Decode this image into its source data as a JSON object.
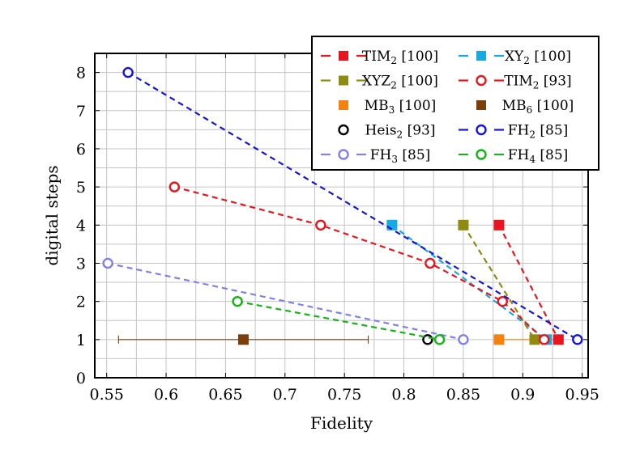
{
  "chart_data": {
    "type": "scatter",
    "xlabel": "Fidelity",
    "ylabel": "digital steps",
    "xlim": [
      0.54,
      0.955
    ],
    "ylim": [
      0,
      8.5
    ],
    "grid": true,
    "legend_position": "top-right",
    "xticks": [
      {
        "v": 0.55,
        "label": "0.55"
      },
      {
        "v": 0.6,
        "label": "0.6"
      },
      {
        "v": 0.65,
        "label": "0.65"
      },
      {
        "v": 0.7,
        "label": "0.7"
      },
      {
        "v": 0.75,
        "label": "0.75"
      },
      {
        "v": 0.8,
        "label": "0.8"
      },
      {
        "v": 0.85,
        "label": "0.85"
      },
      {
        "v": 0.9,
        "label": "0.9"
      },
      {
        "v": 0.95,
        "label": "0.95"
      }
    ],
    "yticks": [
      {
        "v": 0,
        "label": "0"
      },
      {
        "v": 1,
        "label": "1"
      },
      {
        "v": 2,
        "label": "2"
      },
      {
        "v": 3,
        "label": "3"
      },
      {
        "v": 4,
        "label": "4"
      },
      {
        "v": 5,
        "label": "5"
      },
      {
        "v": 6,
        "label": "6"
      },
      {
        "v": 7,
        "label": "7"
      },
      {
        "v": 8,
        "label": "8"
      }
    ],
    "series": [
      {
        "name": "TIM",
        "sub": "2",
        "ref": " [100]",
        "marker": "square",
        "color": "#e8141e",
        "dashed": true,
        "points": [
          {
            "x": 0.88,
            "y": 4
          },
          {
            "x": 0.93,
            "y": 1
          }
        ]
      },
      {
        "name": "XY",
        "sub": "2",
        "ref": " [100]",
        "marker": "square",
        "color": "#17a9e1",
        "dashed": true,
        "points": [
          {
            "x": 0.79,
            "y": 4
          },
          {
            "x": 0.92,
            "y": 1
          }
        ]
      },
      {
        "name": "XYZ",
        "sub": "2",
        "ref": " [100]",
        "marker": "square",
        "color": "#8f8b10",
        "dashed": true,
        "points": [
          {
            "x": 0.85,
            "y": 4
          },
          {
            "x": 0.91,
            "y": 1
          }
        ]
      },
      {
        "name": "TIM",
        "sub": "2",
        "ref": " [93]",
        "marker": "circle",
        "color": "#e8141e",
        "dashed": true,
        "points": [
          {
            "x": 0.607,
            "y": 5
          },
          {
            "x": 0.73,
            "y": 4
          },
          {
            "x": 0.822,
            "y": 3
          },
          {
            "x": 0.883,
            "y": 2
          },
          {
            "x": 0.918,
            "y": 1
          }
        ]
      },
      {
        "name": "MB",
        "sub": "3",
        "ref": " [100]",
        "marker": "square",
        "color": "#f5820f",
        "dashed": false,
        "points": [
          {
            "x": 0.88,
            "y": 1
          }
        ]
      },
      {
        "name": "MB",
        "sub": "6",
        "ref": " [100]",
        "marker": "square",
        "color": "#7a3f0c",
        "dashed": false,
        "points": [
          {
            "x": 0.665,
            "y": 1
          }
        ],
        "xerr": [
          0.56,
          0.77
        ]
      },
      {
        "name": "Heis",
        "sub": "2",
        "ref": " [93]",
        "marker": "circle",
        "color": "#000000",
        "dashed": false,
        "points": [
          {
            "x": 0.82,
            "y": 1
          }
        ]
      },
      {
        "name": "FH",
        "sub": "2",
        "ref": " [85]",
        "marker": "circle",
        "color": "#1414dc",
        "dashed": true,
        "points": [
          {
            "x": 0.568,
            "y": 8
          },
          {
            "x": 0.946,
            "y": 1
          }
        ]
      },
      {
        "name": "FH",
        "sub": "3",
        "ref": " [85]",
        "marker": "circle",
        "color": "#8080e8",
        "dashed": true,
        "points": [
          {
            "x": 0.551,
            "y": 3
          },
          {
            "x": 0.85,
            "y": 1
          }
        ]
      },
      {
        "name": "FH",
        "sub": "4",
        "ref": " [85]",
        "marker": "circle",
        "color": "#14b414",
        "dashed": true,
        "points": [
          {
            "x": 0.66,
            "y": 2
          },
          {
            "x": 0.83,
            "y": 1
          }
        ]
      }
    ],
    "extra_lines": [
      {
        "color": "#f5820f",
        "x": [
          0.88,
          0.928
        ],
        "y": 1,
        "dashed": false
      }
    ]
  }
}
